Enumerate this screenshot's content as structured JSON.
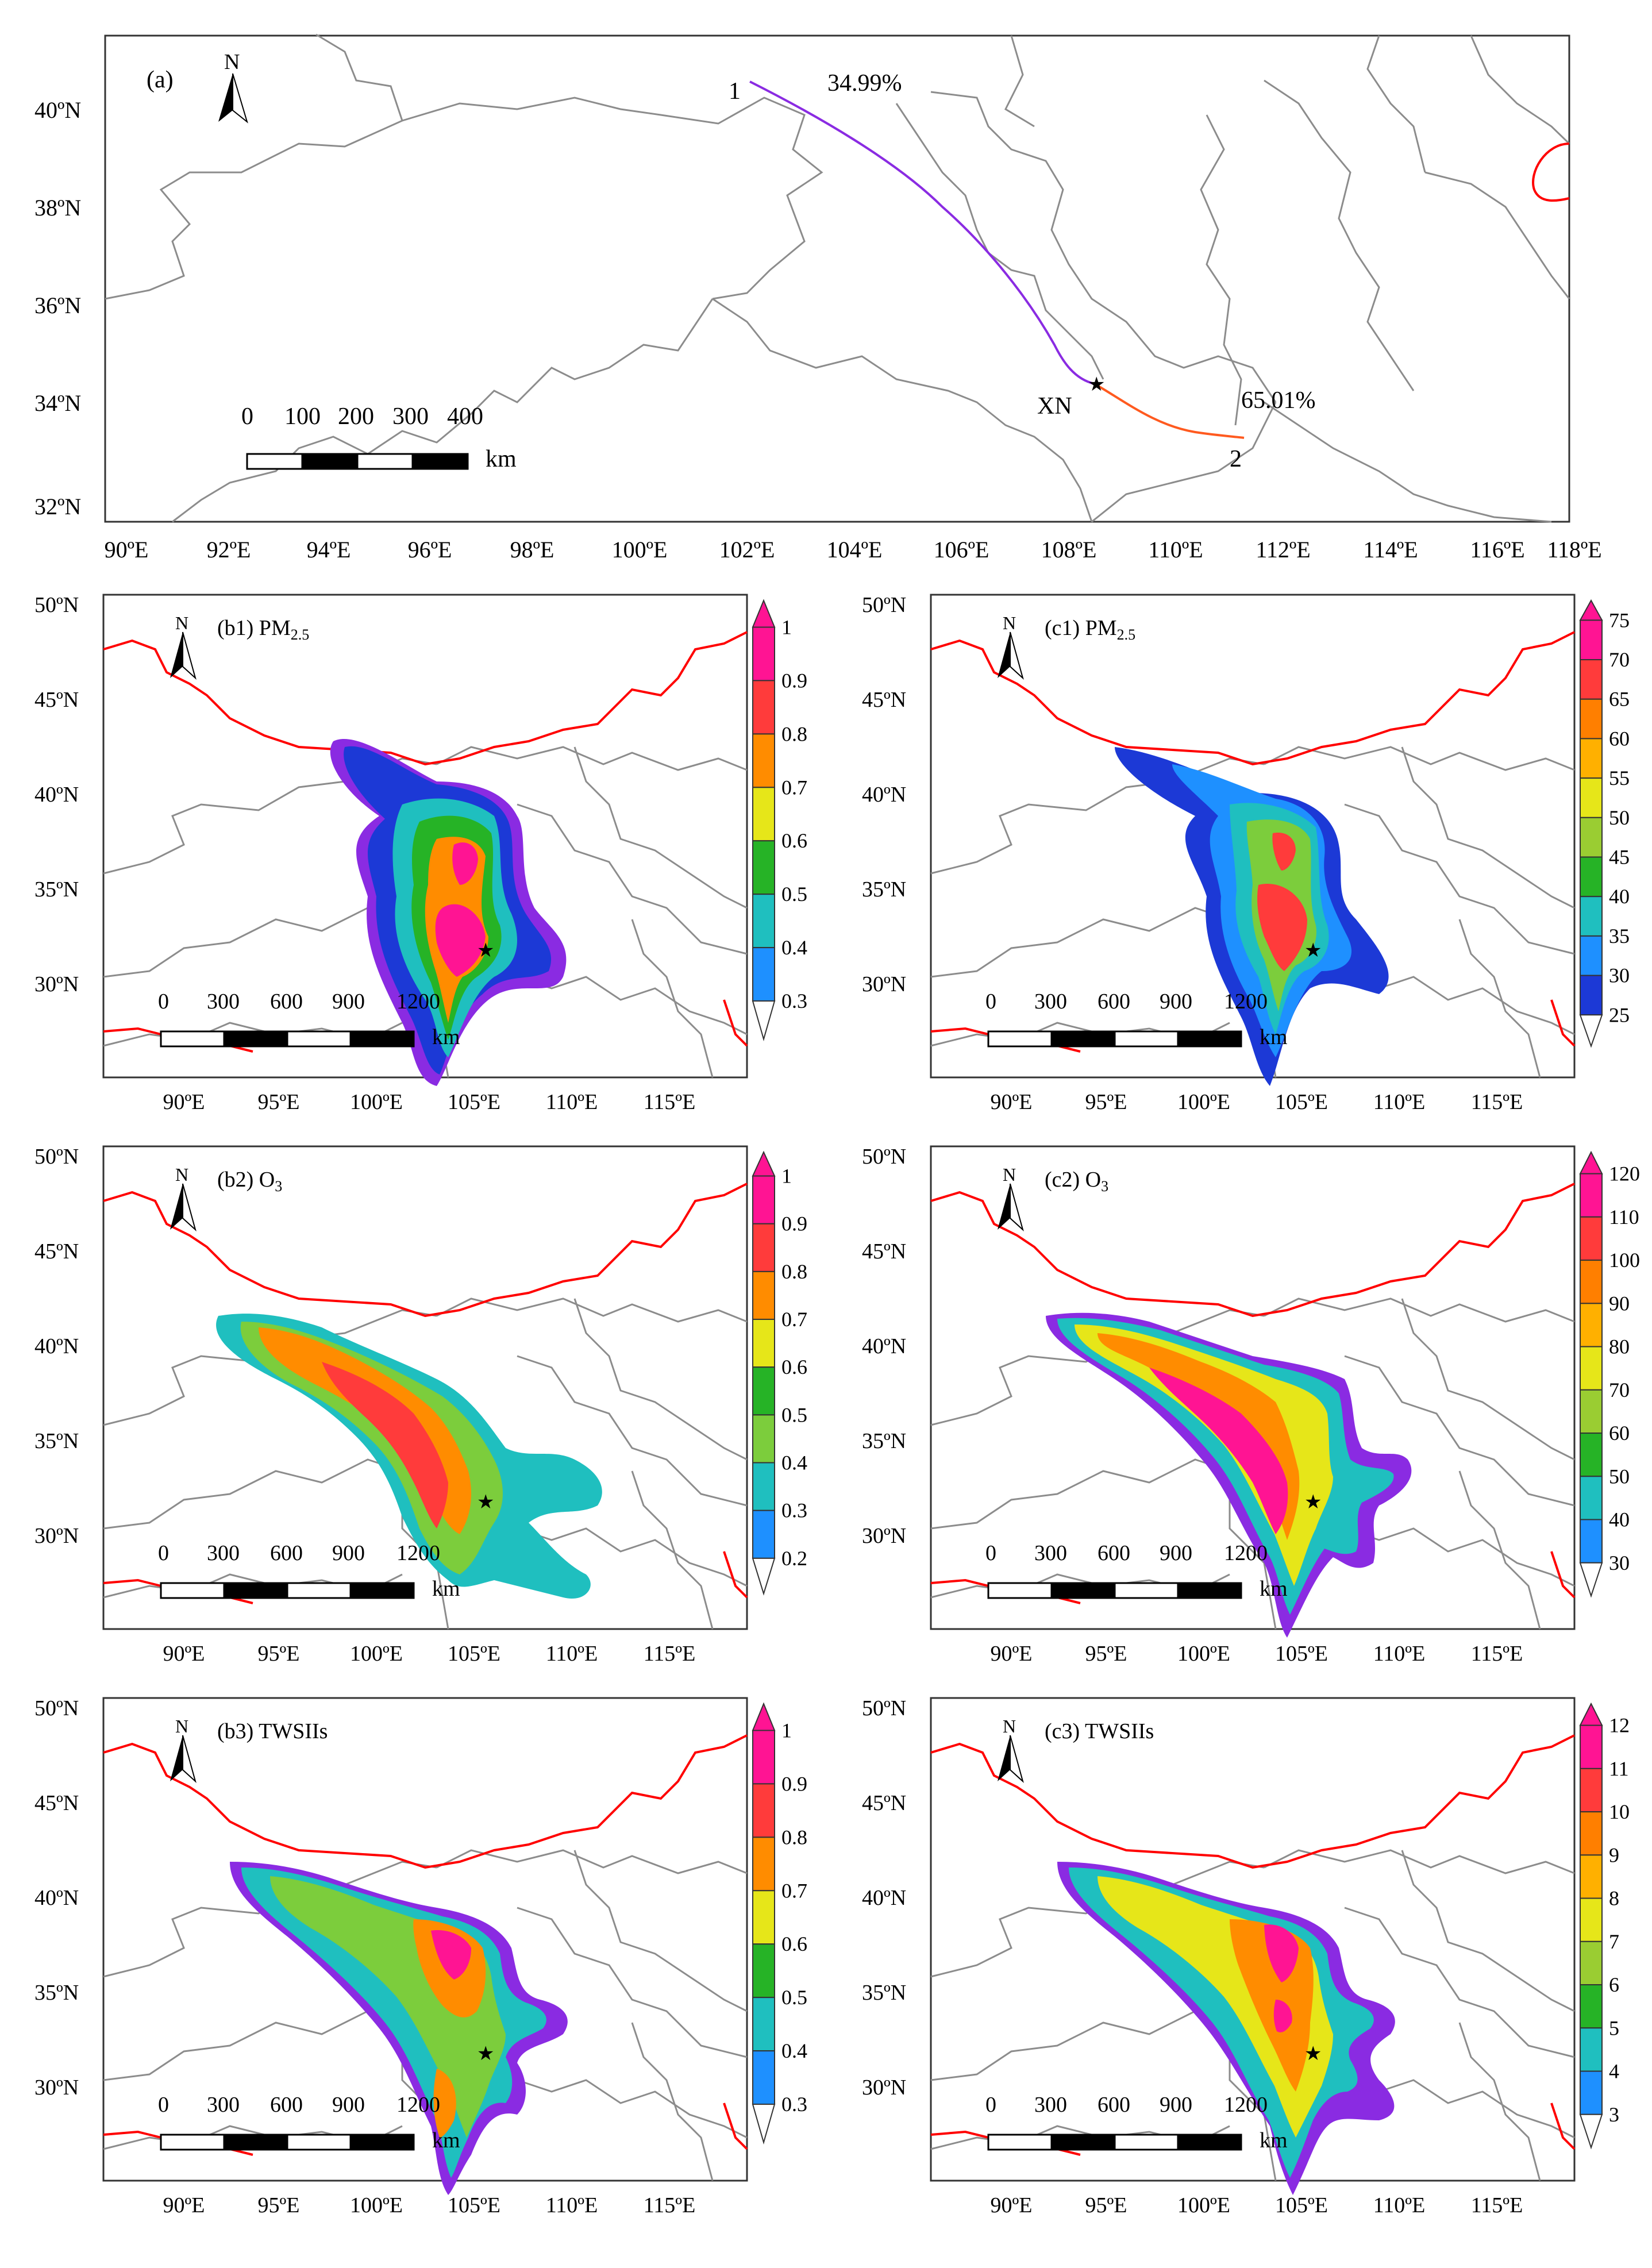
{
  "top_panel": {
    "label": "(a)",
    "north": "N",
    "station": "XN",
    "traj1_id": "1",
    "traj1_pct": "34.99%",
    "traj2_id": "2",
    "traj2_pct": "65.01%",
    "scale_labels": [
      "0",
      "100",
      "200",
      "300",
      "400"
    ],
    "scale_unit": "km",
    "lat_labels": [
      "40ºN",
      "38ºN",
      "36ºN",
      "34ºN",
      "32ºN"
    ],
    "lon_labels": [
      "90ºE",
      "92ºE",
      "94ºE",
      "96ºE",
      "98ºE",
      "100ºE",
      "102ºE",
      "104ºE",
      "106ºE",
      "108ºE",
      "110ºE",
      "112ºE",
      "114ºE",
      "116ºE",
      "118ºE"
    ],
    "traj1_color": "#8a2be2",
    "traj2_color": "#ff5a1f"
  },
  "map_common": {
    "north": "N",
    "lat_labels": [
      "50ºN",
      "45ºN",
      "40ºN",
      "35ºN",
      "30ºN"
    ],
    "lon_labels": [
      "90ºE",
      "95ºE",
      "100ºE",
      "105ºE",
      "110ºE",
      "115ºE"
    ],
    "scale_labels": [
      "0",
      "300",
      "600",
      "900",
      "1200"
    ],
    "scale_unit": "km"
  },
  "panels": [
    {
      "id": "b1",
      "label": "(b1) PM",
      "sub": "2.5",
      "colorbar": [
        "1",
        "0.9",
        "0.8",
        "0.7",
        "0.6",
        "0.5",
        "0.4",
        "0.3"
      ]
    },
    {
      "id": "c1",
      "label": "(c1) PM",
      "sub": "2.5",
      "colorbar": [
        "75",
        "70",
        "65",
        "60",
        "55",
        "50",
        "45",
        "40",
        "35",
        "30",
        "25"
      ]
    },
    {
      "id": "b2",
      "label": "(b2) O",
      "sub": "3",
      "colorbar": [
        "1",
        "0.9",
        "0.8",
        "0.7",
        "0.6",
        "0.5",
        "0.4",
        "0.3",
        "0.2"
      ]
    },
    {
      "id": "c2",
      "label": "(c2) O",
      "sub": "3",
      "colorbar": [
        "120",
        "110",
        "100",
        "90",
        "80",
        "70",
        "60",
        "50",
        "40",
        "30"
      ]
    },
    {
      "id": "b3",
      "label": "(b3) TWSIIs",
      "sub": "",
      "colorbar": [
        "1",
        "0.9",
        "0.8",
        "0.7",
        "0.6",
        "0.5",
        "0.4",
        "0.3"
      ]
    },
    {
      "id": "c3",
      "label": "(c3) TWSIIs",
      "sub": "",
      "colorbar": [
        "12",
        "11",
        "10",
        "9",
        "8",
        "7",
        "6",
        "5",
        "4",
        "3"
      ]
    }
  ],
  "palette": {
    "pink": "#ff1493",
    "red": "#ff3b3b",
    "orange": "#ff8c00",
    "yellow": "#e6e619",
    "green": "#26b326",
    "lightgreen": "#7ccd3c",
    "cyan": "#1fbfbf",
    "blue": "#1e90ff",
    "darkblue": "#1c39d6",
    "purple": "#8a2be2",
    "border_red": "#ff0000",
    "boundary_gray": "#8c8c8c"
  }
}
